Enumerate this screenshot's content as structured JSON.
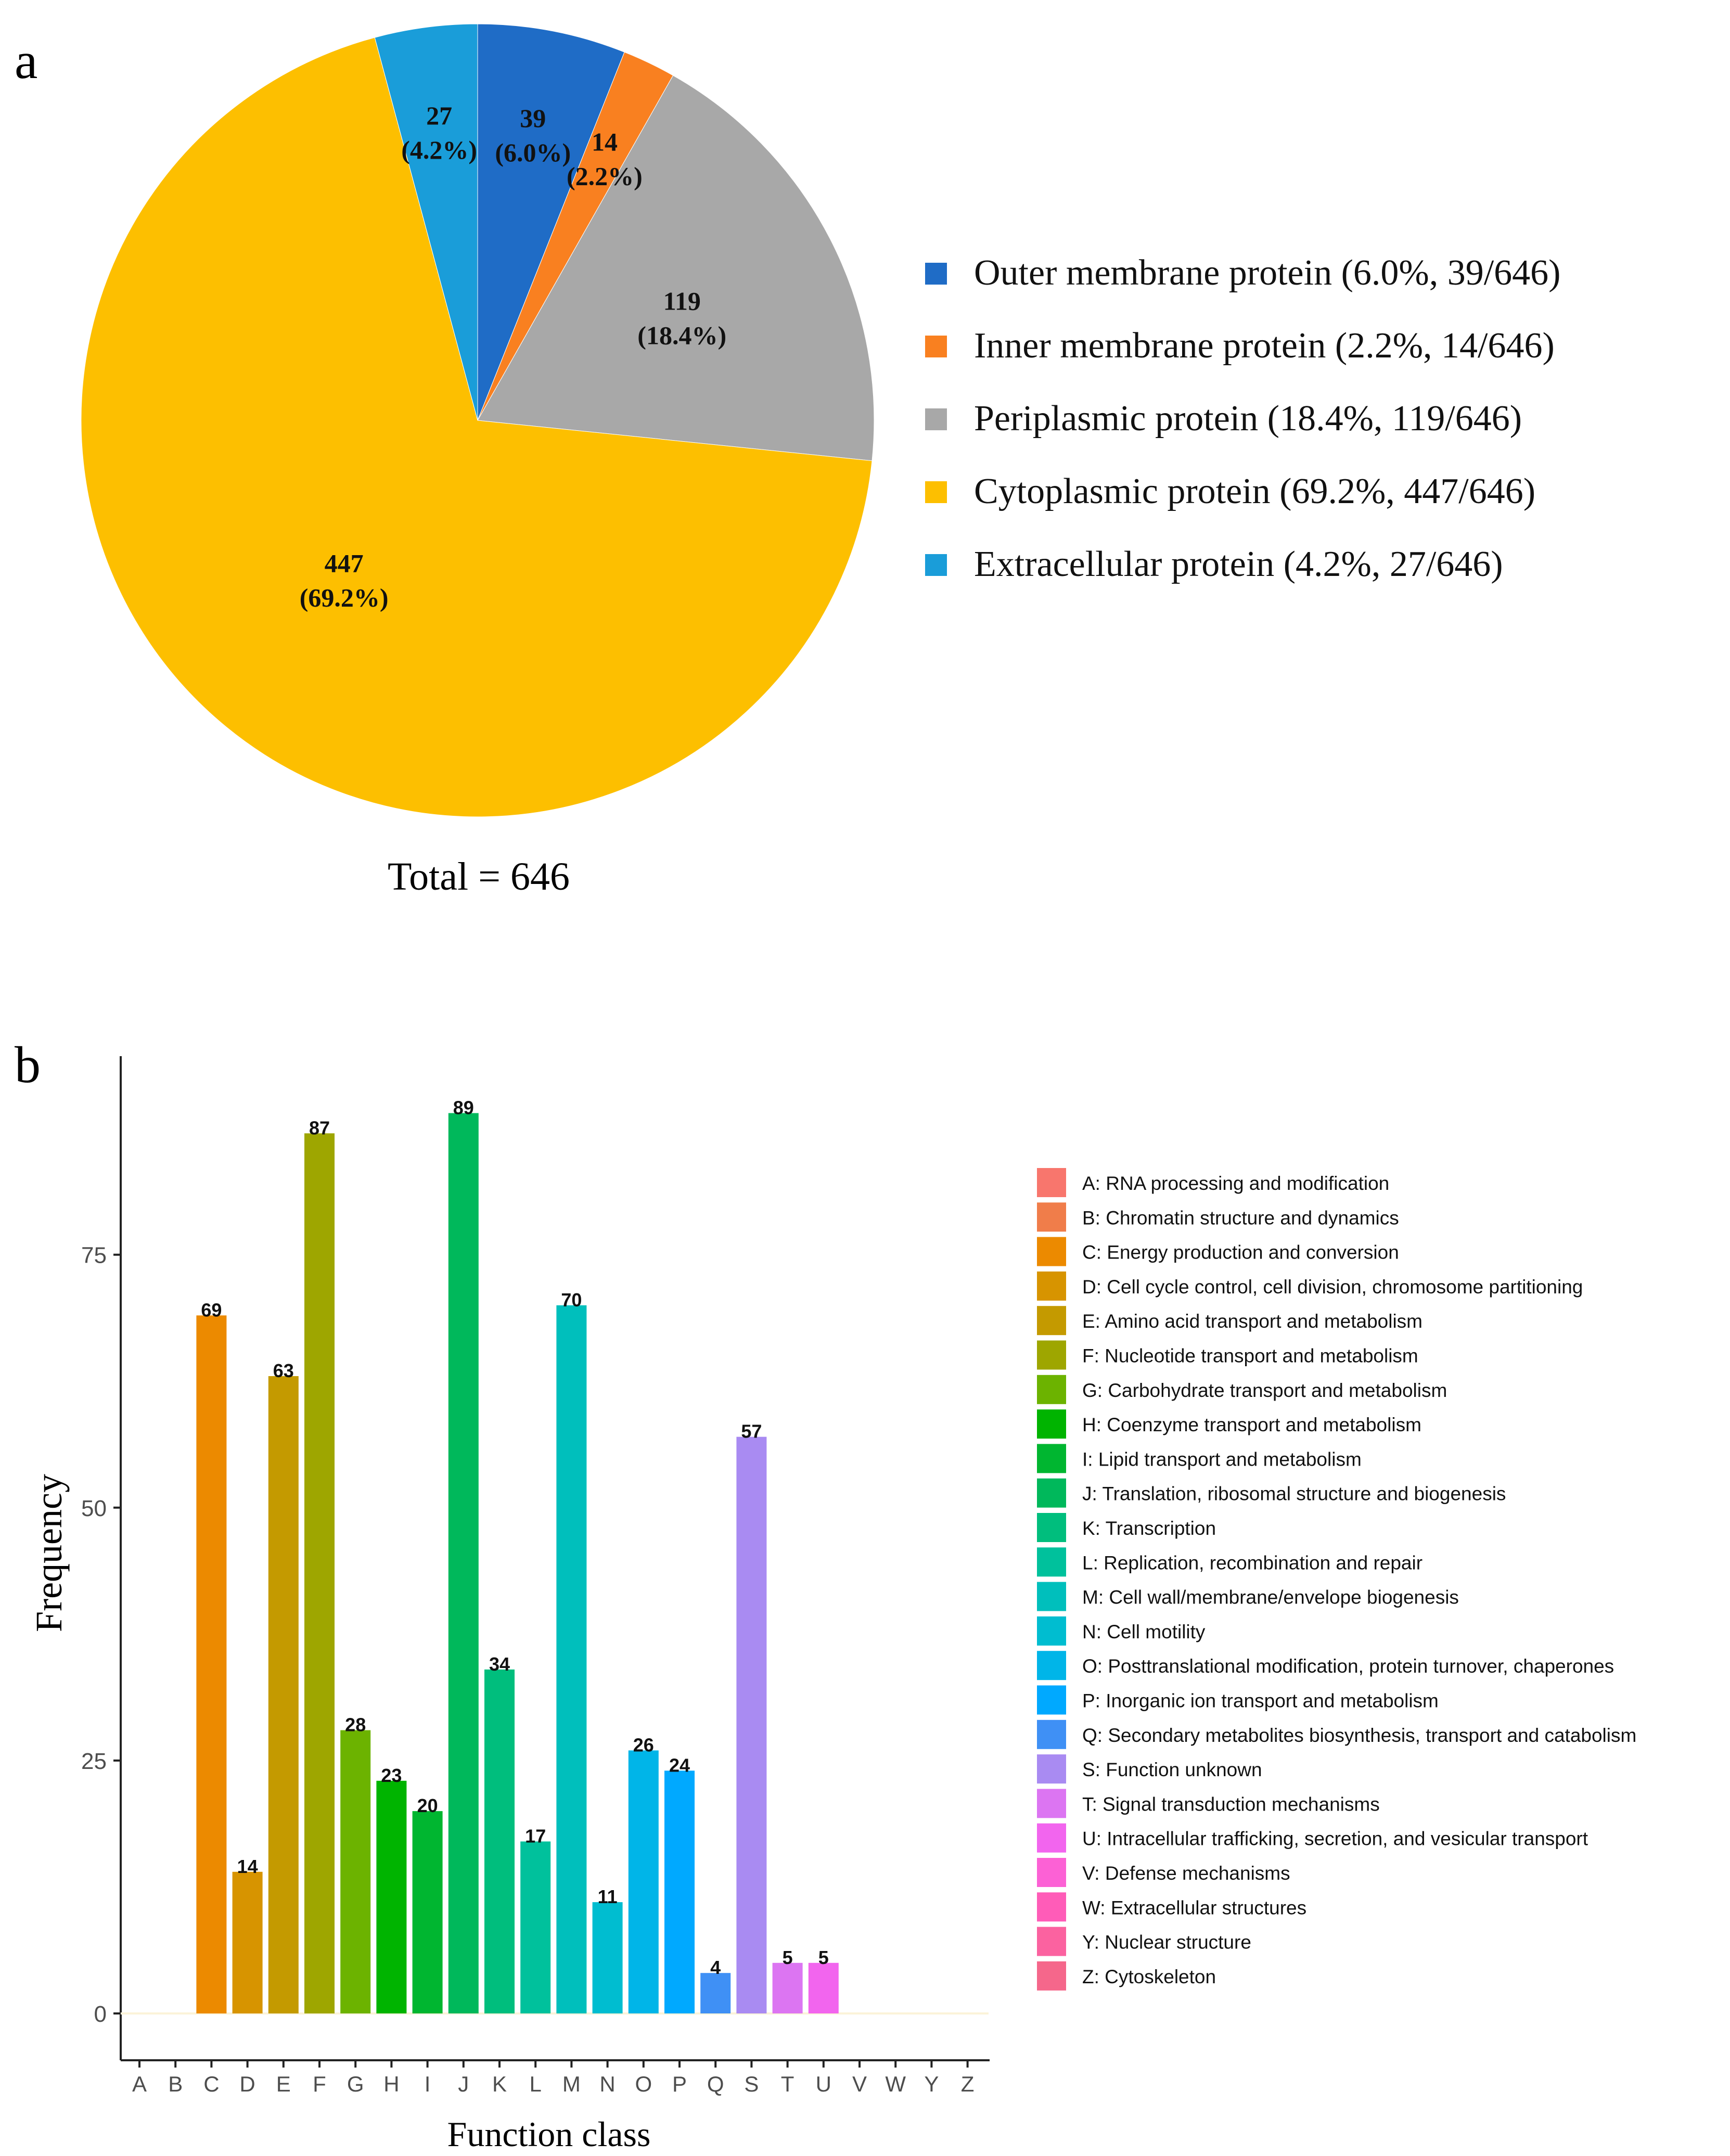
{
  "panel_a": {
    "label": "a",
    "total_label": "Total = 646",
    "chart_data": {
      "type": "pie",
      "slices": [
        {
          "name": "Outer membrane protein",
          "value": 39,
          "pct": "6.0%",
          "legend": "Outer membrane protein (6.0%, 39/646)",
          "color": "#1f6cc6"
        },
        {
          "name": "Inner membrane protein",
          "value": 14,
          "pct": "2.2%",
          "legend": "Inner membrane protein (2.2%, 14/646)",
          "color": "#f98020"
        },
        {
          "name": "Periplasmic protein",
          "value": 119,
          "pct": "18.4%",
          "legend": "Periplasmic protein (18.4%, 119/646)",
          "color": "#a8a8a8"
        },
        {
          "name": "Cytoplasmic protein",
          "value": 447,
          "pct": "69.2%",
          "legend": "Cytoplasmic protein (69.2%, 447/646)",
          "color": "#fdbf00"
        },
        {
          "name": "Extracellular protein",
          "value": 27,
          "pct": "4.2%",
          "legend": "Extracellular protein (4.2%, 27/646)",
          "color": "#1a9dd9"
        }
      ],
      "total": 646,
      "legend_position": "right"
    }
  },
  "panel_b": {
    "label": "b",
    "chart_data": {
      "type": "bar",
      "xlabel": "Function class",
      "ylabel": "Frequency",
      "ylim": [
        0,
        90
      ],
      "yticks": [
        0,
        25,
        50,
        75
      ],
      "categories": [
        "A",
        "B",
        "C",
        "D",
        "E",
        "F",
        "G",
        "H",
        "I",
        "J",
        "K",
        "L",
        "M",
        "N",
        "O",
        "P",
        "Q",
        "S",
        "T",
        "U",
        "V",
        "W",
        "Y",
        "Z"
      ],
      "values": [
        0,
        0,
        69,
        14,
        63,
        87,
        28,
        23,
        20,
        89,
        34,
        17,
        70,
        11,
        26,
        24,
        4,
        57,
        5,
        5,
        0,
        0,
        0,
        0
      ],
      "colors": [
        "#f8766d",
        "#f07d4a",
        "#ec8a00",
        "#d79400",
        "#c49a00",
        "#9ea600",
        "#6cb300",
        "#00b400",
        "#00b630",
        "#00b85b",
        "#00be7d",
        "#00c19c",
        "#00bfbc",
        "#00bdd0",
        "#00b5e8",
        "#00a9ff",
        "#3f90f5",
        "#a98bf2",
        "#dc75f2",
        "#f265ee",
        "#fc61d5",
        "#ff5cb8",
        "#fb62a0",
        "#f5678b"
      ],
      "legend_position": "right",
      "legend": [
        "A: RNA processing and modification",
        "B: Chromatin structure and dynamics",
        "C: Energy production and conversion",
        "D: Cell cycle control, cell division, chromosome partitioning",
        "E: Amino acid transport and metabolism",
        "F: Nucleotide transport and metabolism",
        "G: Carbohydrate transport and metabolism",
        "H: Coenzyme transport and metabolism",
        "I: Lipid transport and metabolism",
        "J: Translation, ribosomal structure and biogenesis",
        "K: Transcription",
        "L: Replication, recombination and repair",
        "M: Cell wall/membrane/envelope biogenesis",
        "N: Cell motility",
        "O: Posttranslational modification, protein turnover, chaperones",
        "P: Inorganic ion transport and metabolism",
        "Q: Secondary metabolites biosynthesis, transport and catabolism",
        "S: Function unknown",
        "T: Signal transduction mechanisms",
        "U: Intracellular trafficking, secretion, and vesicular transport",
        "V: Defense mechanisms",
        "W: Extracellular structures",
        "Y: Nuclear structure",
        "Z: Cytoskeleton"
      ]
    }
  }
}
